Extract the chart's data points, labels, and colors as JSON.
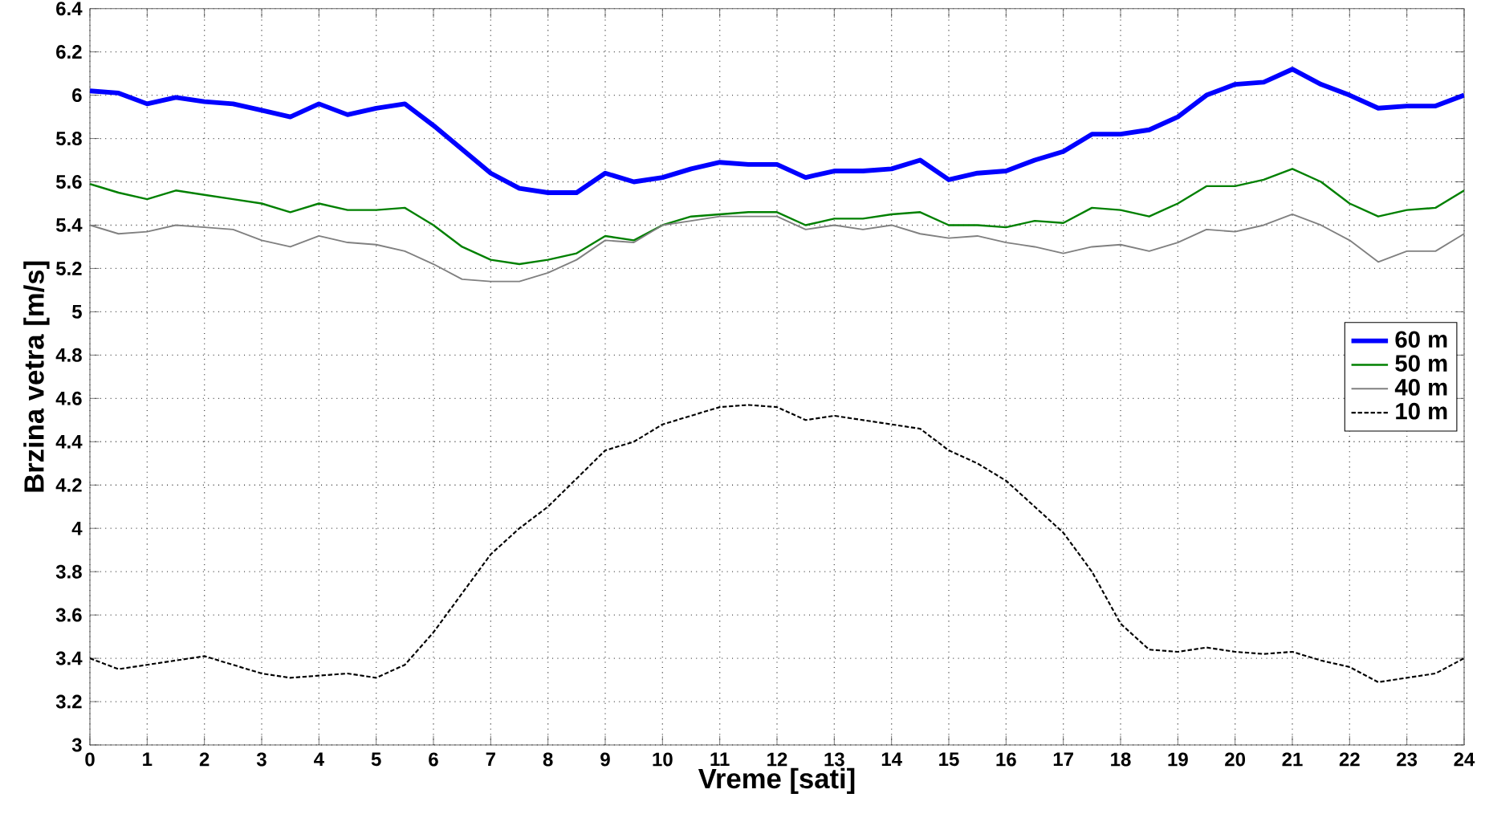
{
  "chart_data": {
    "type": "line",
    "xlabel": "Vreme [sati]",
    "ylabel": "Brzina vetra  [m/s]",
    "x": [
      0,
      0.5,
      1,
      1.5,
      2,
      2.5,
      3,
      3.5,
      4,
      4.5,
      5,
      5.5,
      6,
      6.5,
      7,
      7.5,
      8,
      8.5,
      9,
      9.5,
      10,
      10.5,
      11,
      11.5,
      12,
      12.5,
      13,
      13.5,
      14,
      14.5,
      15,
      15.5,
      16,
      16.5,
      17,
      17.5,
      18,
      18.5,
      19,
      19.5,
      20,
      20.5,
      21,
      21.5,
      22,
      22.5,
      23,
      23.5,
      24
    ],
    "xlim": [
      0,
      24
    ],
    "xticks": [
      0,
      1,
      2,
      3,
      4,
      5,
      6,
      7,
      8,
      9,
      10,
      11,
      12,
      13,
      14,
      15,
      16,
      17,
      18,
      19,
      20,
      21,
      22,
      23,
      24
    ],
    "ylim": [
      3,
      6.4
    ],
    "yticks": [
      3,
      3.2,
      3.4,
      3.6,
      3.8,
      4,
      4.2,
      4.4,
      4.6,
      4.8,
      5,
      5.2,
      5.4,
      5.6,
      5.8,
      6,
      6.2,
      6.4
    ],
    "grid": true,
    "legend": "right",
    "series": [
      {
        "name": "60 m",
        "color": "#0000ff",
        "line_style": "solid",
        "values": [
          6.02,
          6.01,
          5.96,
          5.99,
          5.97,
          5.96,
          5.93,
          5.9,
          5.96,
          5.91,
          5.94,
          5.96,
          5.86,
          5.75,
          5.64,
          5.57,
          5.55,
          5.55,
          5.64,
          5.6,
          5.62,
          5.66,
          5.69,
          5.68,
          5.68,
          5.62,
          5.65,
          5.65,
          5.66,
          5.7,
          5.61,
          5.64,
          5.65,
          5.7,
          5.74,
          5.82,
          5.82,
          5.84,
          5.9,
          6.0,
          6.05,
          6.06,
          6.12,
          6.05,
          6.0,
          5.94,
          5.95,
          5.95,
          6.0
        ]
      },
      {
        "name": "50 m",
        "color": "#008000",
        "line_style": "solid",
        "values": [
          5.59,
          5.55,
          5.52,
          5.56,
          5.54,
          5.52,
          5.5,
          5.46,
          5.5,
          5.47,
          5.47,
          5.48,
          5.4,
          5.3,
          5.24,
          5.22,
          5.24,
          5.27,
          5.35,
          5.33,
          5.4,
          5.44,
          5.45,
          5.46,
          5.46,
          5.4,
          5.43,
          5.43,
          5.45,
          5.46,
          5.4,
          5.4,
          5.39,
          5.42,
          5.41,
          5.48,
          5.47,
          5.44,
          5.5,
          5.58,
          5.58,
          5.61,
          5.66,
          5.6,
          5.5,
          5.44,
          5.47,
          5.48,
          5.56
        ]
      },
      {
        "name": "40 m",
        "color": "#808080",
        "line_style": "solid",
        "values": [
          5.4,
          5.36,
          5.37,
          5.4,
          5.39,
          5.38,
          5.33,
          5.3,
          5.35,
          5.32,
          5.31,
          5.28,
          5.22,
          5.15,
          5.14,
          5.14,
          5.18,
          5.24,
          5.33,
          5.32,
          5.4,
          5.42,
          5.44,
          5.44,
          5.44,
          5.38,
          5.4,
          5.38,
          5.4,
          5.36,
          5.34,
          5.35,
          5.32,
          5.3,
          5.27,
          5.3,
          5.31,
          5.28,
          5.32,
          5.38,
          5.37,
          5.4,
          5.45,
          5.4,
          5.33,
          5.23,
          5.28,
          5.28,
          5.36
        ]
      },
      {
        "name": "10 m",
        "color": "#000000",
        "line_style": "dashed",
        "values": [
          3.4,
          3.35,
          3.37,
          3.39,
          3.41,
          3.37,
          3.33,
          3.31,
          3.32,
          3.33,
          3.31,
          3.37,
          3.52,
          3.7,
          3.88,
          4.0,
          4.1,
          4.23,
          4.36,
          4.4,
          4.48,
          4.52,
          4.56,
          4.57,
          4.56,
          4.5,
          4.52,
          4.5,
          4.48,
          4.46,
          4.36,
          4.3,
          4.22,
          4.1,
          3.98,
          3.8,
          3.56,
          3.44,
          3.43,
          3.45,
          3.43,
          3.42,
          3.43,
          3.39,
          3.36,
          3.29,
          3.31,
          3.33,
          3.4
        ]
      }
    ]
  }
}
